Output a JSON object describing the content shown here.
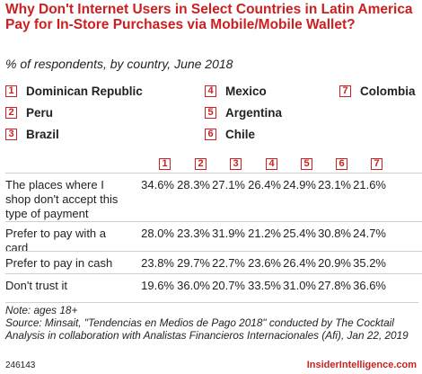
{
  "title": "Why Don't Internet Users in Select Countries in Latin America Pay for In-Store Purchases via Mobile/Mobile Wallet?",
  "subtitle": "% of respondents, by country, June 2018",
  "legend": [
    {
      "num": "1",
      "label": "Dominican Republic"
    },
    {
      "num": "2",
      "label": "Peru"
    },
    {
      "num": "3",
      "label": "Brazil"
    },
    {
      "num": "4",
      "label": "Mexico"
    },
    {
      "num": "5",
      "label": "Argentina"
    },
    {
      "num": "6",
      "label": "Chile"
    },
    {
      "num": "7",
      "label": "Colombia"
    }
  ],
  "chart_data": {
    "type": "table",
    "columns": [
      "1",
      "2",
      "3",
      "4",
      "5",
      "6",
      "7"
    ],
    "rows": [
      {
        "label": "The places where I shop don't accept this type of payment",
        "values": [
          "34.6%",
          "28.3%",
          "27.1%",
          "26.4%",
          "24.9%",
          "23.1%",
          "21.6%"
        ]
      },
      {
        "label": "Prefer to pay with a card",
        "values": [
          "28.0%",
          "23.3%",
          "31.9%",
          "21.2%",
          "25.4%",
          "30.8%",
          "24.7%"
        ]
      },
      {
        "label": "Prefer to pay in cash",
        "values": [
          "23.8%",
          "29.7%",
          "22.7%",
          "23.6%",
          "26.4%",
          "20.9%",
          "35.2%"
        ]
      },
      {
        "label": "Don't trust it",
        "values": [
          "19.6%",
          "36.0%",
          "20.7%",
          "33.5%",
          "31.0%",
          "27.8%",
          "36.6%"
        ]
      }
    ]
  },
  "notes": {
    "note": "Note: ages 18+",
    "source": "Source: Minsait, \"Tendencias en Medios de Pago 2018\" conducted by The Cocktail Analysis in collaboration with Analistas Financieros Internacionales (Afi), Jan 22, 2019"
  },
  "footer": {
    "id": "246143",
    "brand": "InsiderIntelligence.com"
  },
  "colors": {
    "accent": "#cc1f1f",
    "text": "#222222",
    "rule": "#cfcfcf"
  }
}
